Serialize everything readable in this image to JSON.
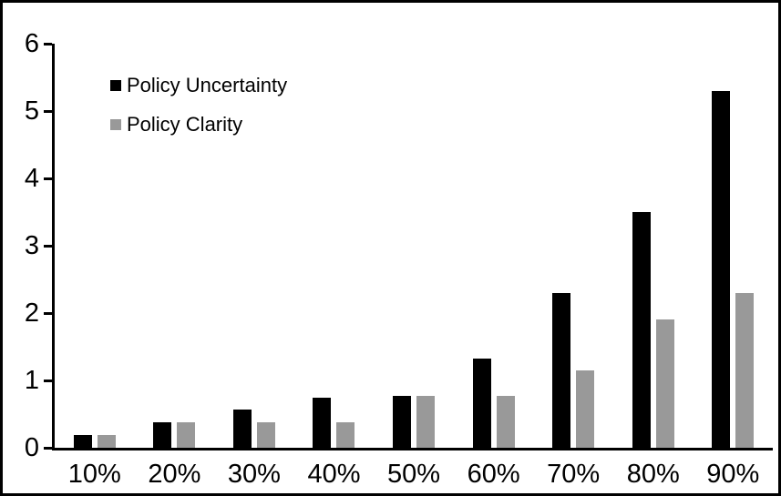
{
  "chart_data": {
    "type": "bar",
    "title": "",
    "xlabel": "",
    "ylabel": "",
    "categories": [
      "10%",
      "20%",
      "30%",
      "40%",
      "50%",
      "60%",
      "70%",
      "80%",
      "90%"
    ],
    "series": [
      {
        "name": "Policy Uncertainty",
        "color": "#000000",
        "values": [
          0.19,
          0.38,
          0.57,
          0.75,
          0.77,
          1.33,
          2.3,
          3.5,
          5.3
        ]
      },
      {
        "name": "Policy Clarity",
        "color": "#999999",
        "values": [
          0.19,
          0.38,
          0.38,
          0.38,
          0.77,
          0.77,
          1.15,
          1.9,
          2.3
        ]
      }
    ],
    "ylim": [
      0,
      6
    ],
    "yticks": [
      0,
      1,
      2,
      3,
      4,
      5,
      6
    ],
    "grid": false,
    "legend_position": "top-left",
    "frame_color": "#000000",
    "background_color": "#ffffff"
  }
}
